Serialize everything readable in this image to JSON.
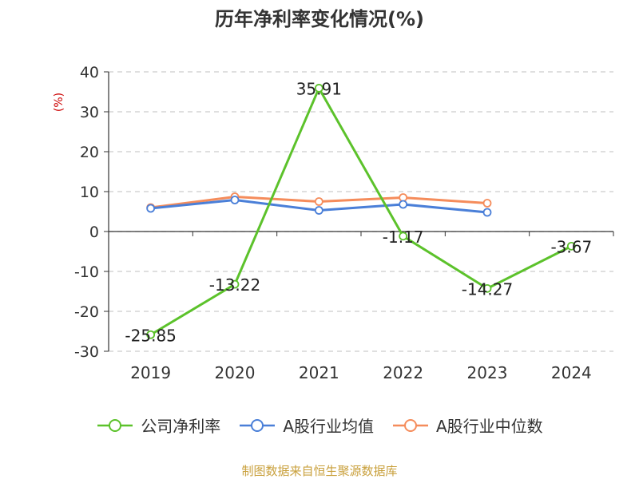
{
  "title": "历年净利率变化情况(%)",
  "source_text": "制图数据来自恒生聚源数据库",
  "chart_data": {
    "type": "line",
    "title": "历年净利率变化情况(%)",
    "ylabel": "(%)",
    "xlabel": "",
    "categories": [
      "2019",
      "2020",
      "2021",
      "2022",
      "2023",
      "2024"
    ],
    "ylim": [
      -30,
      40
    ],
    "yticks": [
      40,
      30,
      20,
      10,
      0,
      -10,
      -20,
      -30
    ],
    "grid": "horizontal dashed",
    "legend_position": "bottom",
    "series": [
      {
        "name": "公司净利率",
        "color": "#5cc22b",
        "values": [
          -25.85,
          -13.22,
          35.91,
          -1.17,
          -14.27,
          -3.67
        ],
        "data_labels": [
          "-25.85",
          "-13.22",
          "35.91",
          "-1.17",
          "-14.27",
          "-3.67"
        ]
      },
      {
        "name": "A股行业均值",
        "color": "#4a7fd8",
        "values": [
          5.8,
          7.9,
          5.3,
          6.8,
          4.8,
          null
        ]
      },
      {
        "name": "A股行业中位数",
        "color": "#f58c5b",
        "values": [
          6.0,
          8.7,
          7.5,
          8.5,
          7.1,
          null
        ]
      }
    ]
  }
}
